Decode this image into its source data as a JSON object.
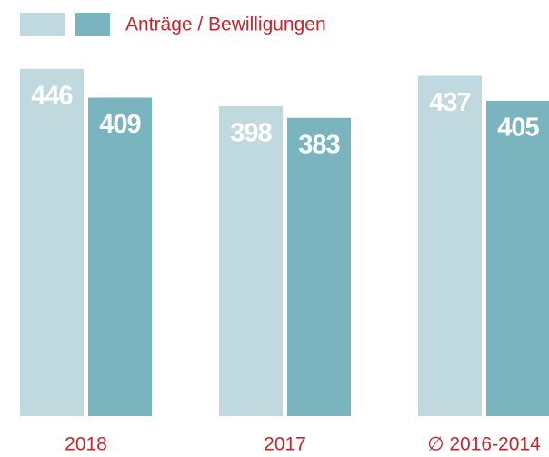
{
  "chart_data": {
    "type": "bar",
    "legend_label": "Anträge / Bewilligungen",
    "categories": [
      "2018",
      "2017",
      "∅ 2016-2014"
    ],
    "series": [
      {
        "color": "#c0d9df",
        "values": [
          446,
          398,
          437
        ]
      },
      {
        "color": "#7ab4bf",
        "values": [
          409,
          383,
          405
        ]
      }
    ]
  }
}
